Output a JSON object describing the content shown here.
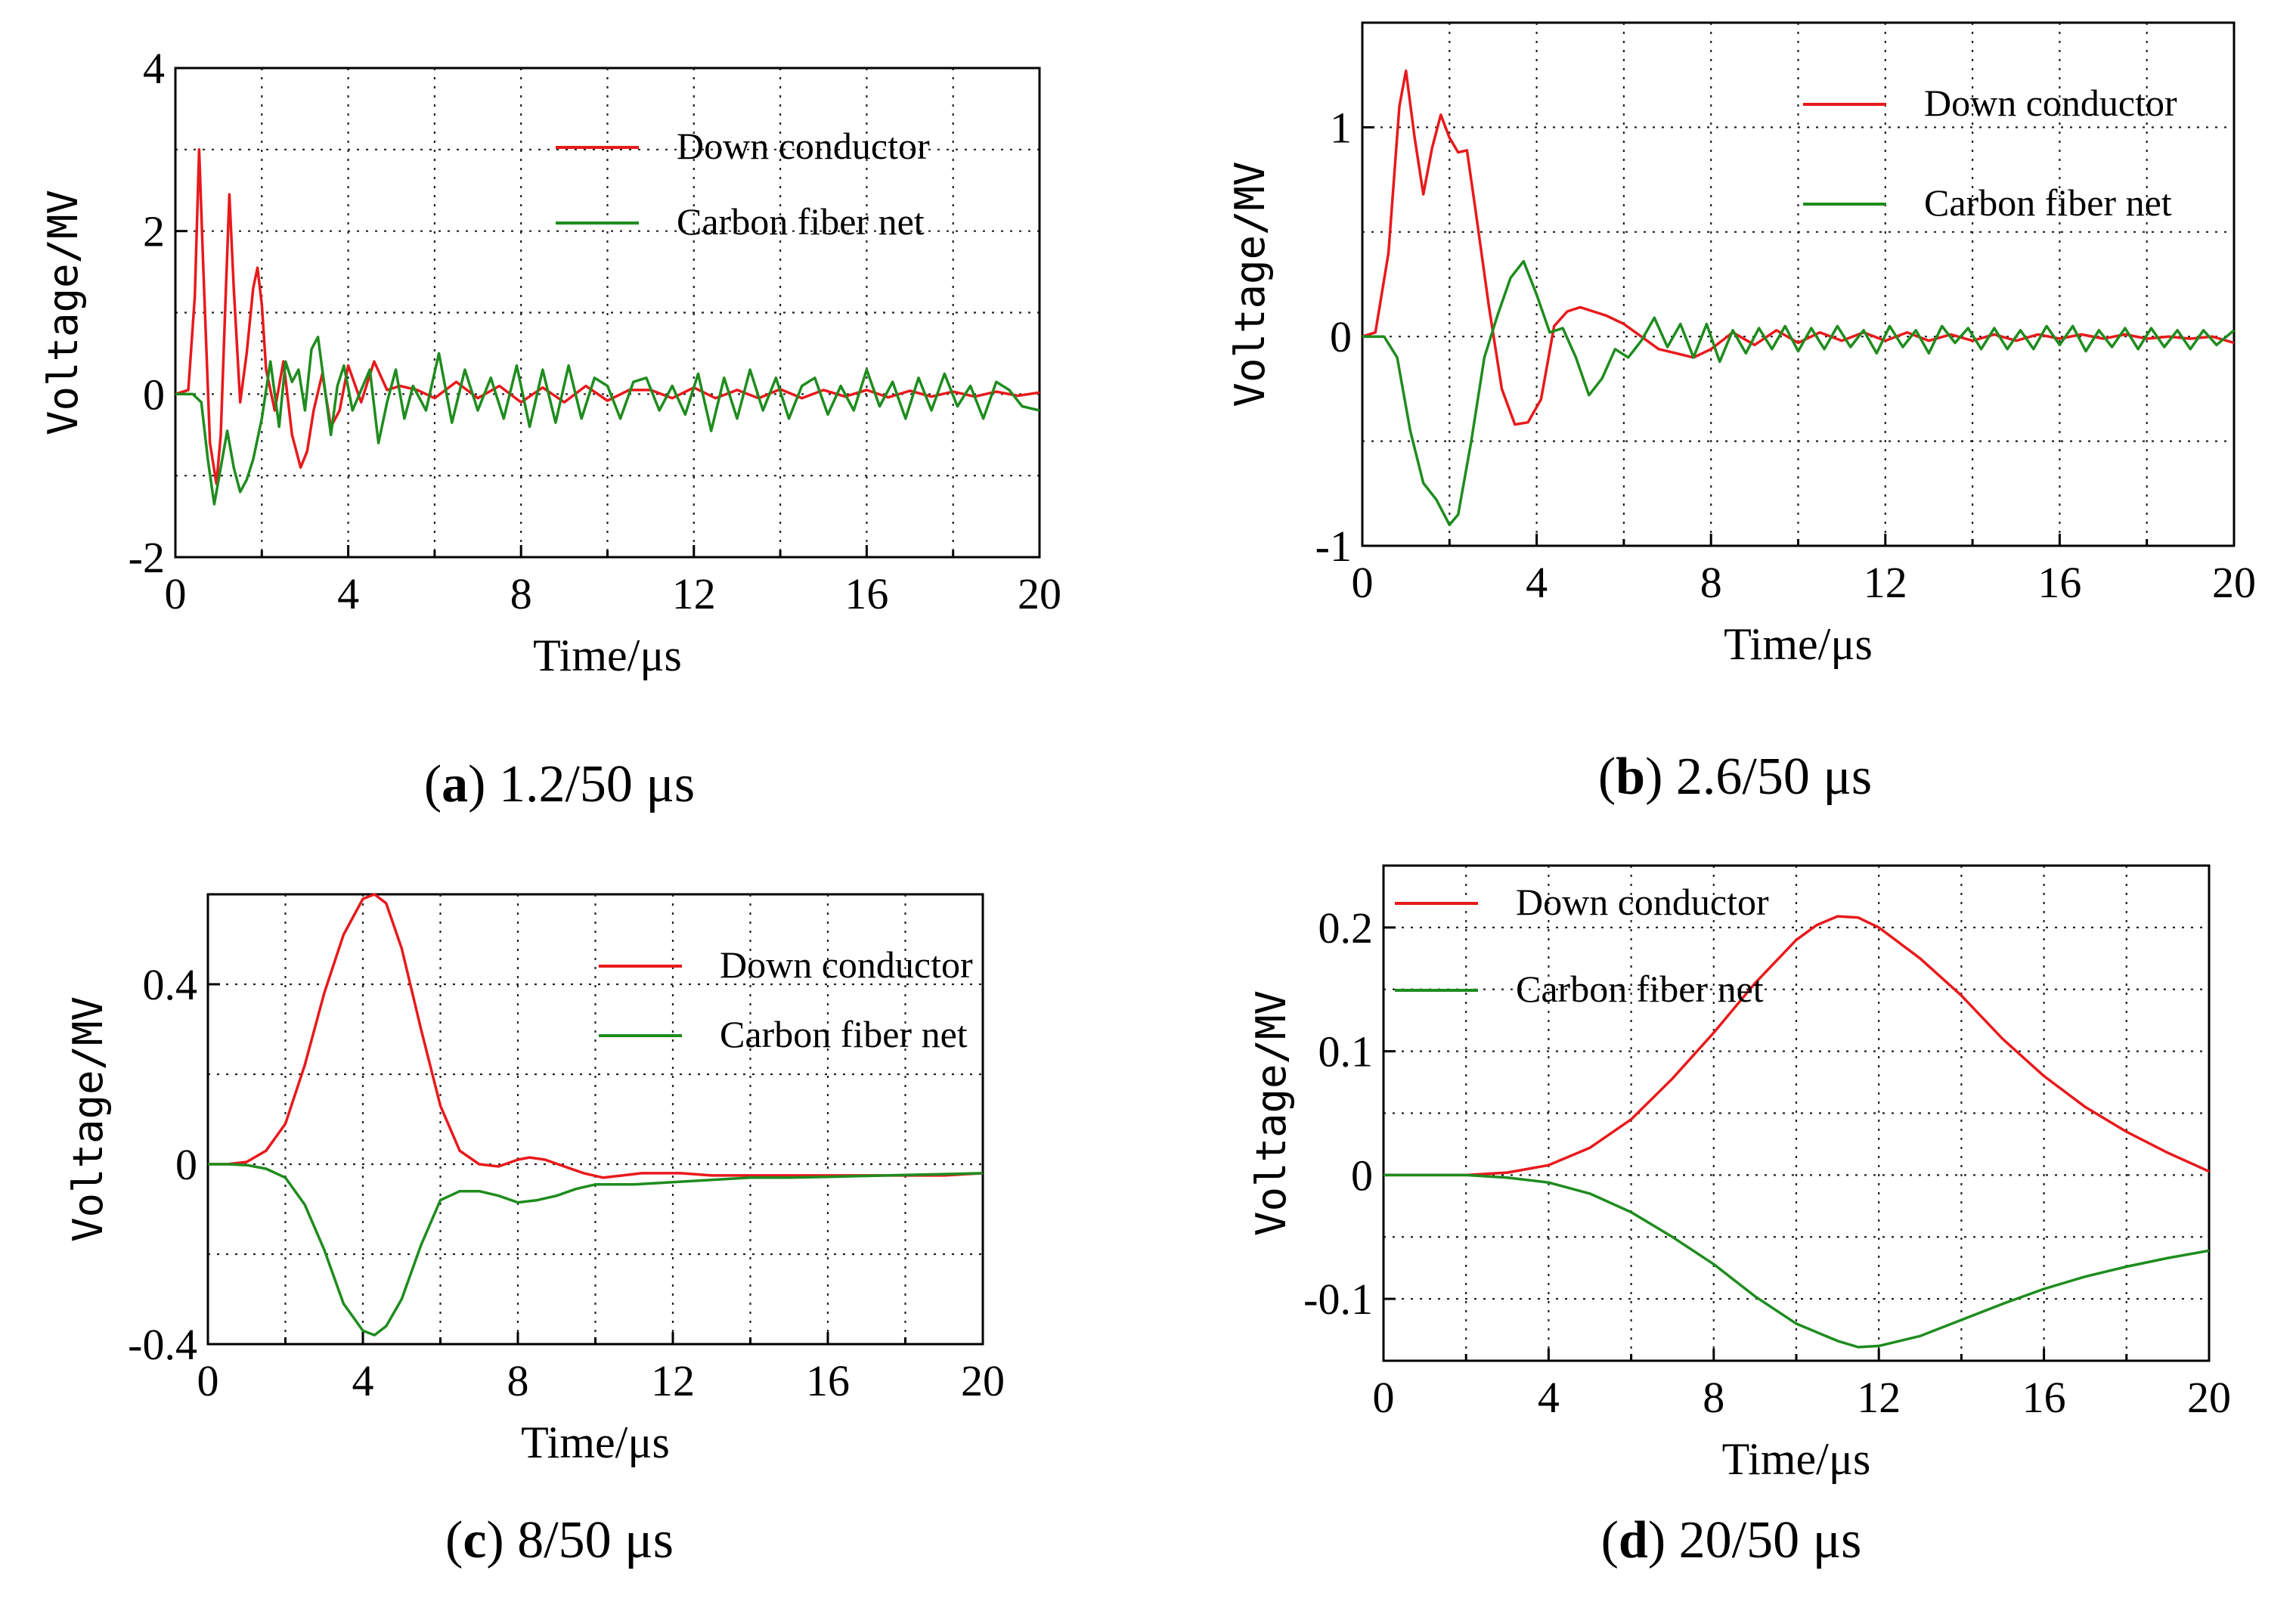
{
  "chart_data": [
    {
      "id": "a",
      "type": "line",
      "caption_letter": "a",
      "caption_text": " 1.2/50 μs",
      "xlabel": "Time/μs",
      "ylabel": "Voltage/MV",
      "xlim": [
        0,
        20
      ],
      "ylim": [
        -2,
        4
      ],
      "xticks": [
        0,
        4,
        8,
        12,
        16,
        20
      ],
      "xtick_labels": [
        "0",
        "4",
        "8",
        "12",
        "16",
        "20"
      ],
      "yticks": [
        -2,
        0,
        2,
        4
      ],
      "ytick_labels": [
        "-2",
        "0",
        "2",
        "4"
      ],
      "legend_position": "top-right",
      "series": [
        {
          "name": "Down conductor",
          "color": "#e8191c",
          "x": [
            0,
            0.3,
            0.45,
            0.55,
            0.65,
            0.8,
            0.95,
            1.05,
            1.15,
            1.25,
            1.35,
            1.5,
            1.65,
            1.8,
            1.9,
            2.0,
            2.1,
            2.3,
            2.5,
            2.7,
            2.9,
            3.05,
            3.2,
            3.4,
            3.6,
            3.8,
            4.0,
            4.3,
            4.6,
            4.9,
            5.2,
            5.6,
            6.0,
            6.5,
            7.0,
            7.5,
            8.0,
            8.5,
            9.0,
            9.5,
            10.0,
            10.5,
            11.0,
            11.5,
            12.0,
            12.5,
            13.0,
            13.5,
            14.0,
            14.5,
            15.0,
            15.5,
            16.0,
            16.5,
            17.0,
            17.5,
            18.0,
            18.5,
            19.0,
            19.5,
            20.0
          ],
          "y": [
            0,
            0.05,
            1.2,
            3.0,
            1.5,
            -0.6,
            -1.1,
            -0.5,
            1.0,
            2.45,
            1.3,
            -0.1,
            0.5,
            1.3,
            1.55,
            1.1,
            0.3,
            -0.2,
            0.4,
            -0.5,
            -0.9,
            -0.7,
            -0.2,
            0.25,
            -0.4,
            -0.2,
            0.35,
            -0.1,
            0.4,
            0.05,
            0.1,
            0.05,
            -0.05,
            0.15,
            -0.05,
            0.1,
            -0.1,
            0.08,
            -0.1,
            0.1,
            -0.08,
            0.05,
            0.05,
            -0.05,
            0.08,
            -0.05,
            0.05,
            -0.05,
            0.06,
            -0.05,
            0.05,
            -0.03,
            0.05,
            -0.04,
            0.04,
            -0.03,
            0.03,
            -0.03,
            0.03,
            -0.02,
            0.02
          ]
        },
        {
          "name": "Carbon fiber net",
          "color": "#1e8c1e",
          "x": [
            0,
            0.4,
            0.6,
            0.75,
            0.9,
            1.05,
            1.2,
            1.35,
            1.5,
            1.65,
            1.8,
            2.0,
            2.2,
            2.4,
            2.55,
            2.7,
            2.85,
            3.0,
            3.15,
            3.3,
            3.45,
            3.6,
            3.75,
            3.9,
            4.1,
            4.3,
            4.5,
            4.7,
            4.9,
            5.1,
            5.3,
            5.5,
            5.8,
            6.1,
            6.4,
            6.7,
            7.0,
            7.3,
            7.6,
            7.9,
            8.2,
            8.5,
            8.8,
            9.1,
            9.4,
            9.7,
            10.0,
            10.3,
            10.6,
            10.9,
            11.2,
            11.5,
            11.8,
            12.1,
            12.4,
            12.7,
            13.0,
            13.3,
            13.6,
            13.9,
            14.2,
            14.5,
            14.8,
            15.1,
            15.4,
            15.7,
            16.0,
            16.3,
            16.6,
            16.9,
            17.2,
            17.5,
            17.8,
            18.1,
            18.4,
            18.7,
            19.0,
            19.3,
            19.6,
            20.0
          ],
          "y": [
            0,
            0,
            -0.1,
            -0.8,
            -1.35,
            -0.9,
            -0.45,
            -0.9,
            -1.2,
            -1.05,
            -0.8,
            -0.3,
            0.4,
            -0.4,
            0.4,
            0.15,
            0.3,
            -0.2,
            0.55,
            0.7,
            0.1,
            -0.5,
            0.1,
            0.35,
            -0.2,
            0.05,
            0.3,
            -0.6,
            -0.1,
            0.3,
            -0.3,
            0.1,
            -0.2,
            0.5,
            -0.35,
            0.3,
            -0.2,
            0.2,
            -0.3,
            0.35,
            -0.4,
            0.3,
            -0.35,
            0.35,
            -0.3,
            0.2,
            0.1,
            -0.3,
            0.15,
            0.2,
            -0.2,
            0.1,
            -0.25,
            0.25,
            -0.45,
            0.2,
            -0.3,
            0.3,
            -0.2,
            0.2,
            -0.3,
            0.1,
            0.2,
            -0.25,
            0.1,
            -0.2,
            0.3,
            -0.15,
            0.15,
            -0.3,
            0.2,
            -0.2,
            0.25,
            -0.15,
            0.1,
            -0.3,
            0.15,
            0.05,
            -0.15,
            -0.2
          ]
        }
      ]
    },
    {
      "id": "b",
      "type": "line",
      "caption_letter": "b",
      "caption_text": " 2.6/50 μs",
      "xlabel": "Time/μs",
      "ylabel": "Voltage/MV",
      "xlim": [
        0,
        20
      ],
      "ylim": [
        -1,
        1.5
      ],
      "xticks": [
        0,
        4,
        8,
        12,
        16,
        20
      ],
      "xtick_labels": [
        "0",
        "4",
        "8",
        "12",
        "16",
        "20"
      ],
      "yticks": [
        -1,
        0,
        1
      ],
      "ytick_labels": [
        "-1",
        "0",
        "1"
      ],
      "legend_position": "top-right",
      "series": [
        {
          "name": "Down conductor",
          "color": "#e8191c",
          "x": [
            0,
            0.3,
            0.6,
            0.85,
            1.0,
            1.2,
            1.4,
            1.6,
            1.8,
            2.0,
            2.2,
            2.4,
            2.6,
            2.9,
            3.2,
            3.5,
            3.8,
            4.1,
            4.4,
            4.7,
            5.0,
            5.3,
            5.6,
            6.0,
            6.4,
            6.8,
            7.2,
            7.6,
            8.0,
            8.5,
            9.0,
            9.5,
            10.0,
            10.5,
            11.0,
            11.5,
            12.0,
            12.5,
            13.0,
            13.5,
            14.0,
            14.5,
            15.0,
            15.5,
            16.0,
            16.5,
            17.0,
            17.5,
            18.0,
            18.5,
            19.0,
            19.5,
            20.0
          ],
          "y": [
            0,
            0.02,
            0.4,
            1.1,
            1.27,
            0.95,
            0.68,
            0.9,
            1.06,
            0.95,
            0.88,
            0.89,
            0.6,
            0.15,
            -0.25,
            -0.42,
            -0.41,
            -0.3,
            0.05,
            0.12,
            0.14,
            0.12,
            0.1,
            0.06,
            0.0,
            -0.06,
            -0.08,
            -0.1,
            -0.06,
            0.02,
            -0.04,
            0.03,
            -0.03,
            0.02,
            -0.02,
            0.02,
            -0.02,
            0.02,
            -0.02,
            0.01,
            -0.02,
            0.01,
            -0.02,
            0.01,
            -0.01,
            0.01,
            -0.01,
            0.01,
            -0.01,
            0.0,
            -0.01,
            0.0,
            -0.03
          ]
        },
        {
          "name": "Carbon fiber net",
          "color": "#1e8c1e",
          "x": [
            0,
            0.5,
            0.8,
            1.1,
            1.4,
            1.7,
            2.0,
            2.2,
            2.5,
            2.8,
            3.1,
            3.4,
            3.7,
            4.0,
            4.3,
            4.6,
            4.9,
            5.2,
            5.5,
            5.8,
            6.1,
            6.4,
            6.7,
            7.0,
            7.3,
            7.6,
            7.9,
            8.2,
            8.5,
            8.8,
            9.1,
            9.4,
            9.7,
            10.0,
            10.3,
            10.6,
            10.9,
            11.2,
            11.5,
            11.8,
            12.1,
            12.4,
            12.7,
            13.0,
            13.3,
            13.6,
            13.9,
            14.2,
            14.5,
            14.8,
            15.1,
            15.4,
            15.7,
            16.0,
            16.3,
            16.6,
            16.9,
            17.2,
            17.5,
            17.8,
            18.1,
            18.4,
            18.7,
            19.0,
            19.3,
            19.6,
            20.0
          ],
          "y": [
            0,
            0,
            -0.1,
            -0.45,
            -0.7,
            -0.78,
            -0.9,
            -0.85,
            -0.5,
            -0.1,
            0.1,
            0.28,
            0.36,
            0.2,
            0.02,
            0.04,
            -0.1,
            -0.28,
            -0.2,
            -0.06,
            -0.1,
            -0.02,
            0.09,
            -0.05,
            0.06,
            -0.1,
            0.06,
            -0.12,
            0.03,
            -0.08,
            0.04,
            -0.06,
            0.05,
            -0.07,
            0.04,
            -0.06,
            0.05,
            -0.05,
            0.03,
            -0.08,
            0.05,
            -0.05,
            0.03,
            -0.08,
            0.05,
            -0.03,
            0.04,
            -0.06,
            0.04,
            -0.06,
            0.03,
            -0.06,
            0.05,
            -0.04,
            0.05,
            -0.07,
            0.03,
            -0.05,
            0.04,
            -0.06,
            0.04,
            -0.05,
            0.03,
            -0.06,
            0.03,
            -0.04,
            0.03
          ]
        }
      ]
    },
    {
      "id": "c",
      "type": "line",
      "caption_letter": "c",
      "caption_text": " 8/50 μs",
      "xlabel": "Time/μs",
      "ylabel": "Voltage/MV",
      "xlim": [
        0,
        20
      ],
      "ylim": [
        -0.4,
        0.6
      ],
      "xticks": [
        0,
        4,
        8,
        12,
        16,
        20
      ],
      "xtick_labels": [
        "0",
        "4",
        "8",
        "12",
        "16",
        "20"
      ],
      "yticks": [
        -0.4,
        0,
        0.4
      ],
      "ytick_labels": [
        "-0.4",
        "0",
        "0.4"
      ],
      "legend_position": "top-right",
      "series": [
        {
          "name": "Down conductor",
          "color": "#e8191c",
          "x": [
            0,
            0.5,
            1.0,
            1.5,
            2.0,
            2.5,
            3.0,
            3.5,
            4.0,
            4.3,
            4.6,
            5.0,
            5.5,
            6.0,
            6.5,
            7.0,
            7.5,
            8.0,
            8.3,
            8.7,
            9.2,
            9.7,
            10.2,
            10.7,
            11.2,
            11.7,
            12.2,
            13.0,
            14.0,
            15.0,
            16.0,
            17.0,
            18.0,
            19.0,
            20.0
          ],
          "y": [
            0,
            0,
            0.005,
            0.03,
            0.09,
            0.22,
            0.38,
            0.51,
            0.59,
            0.6,
            0.58,
            0.48,
            0.3,
            0.13,
            0.03,
            0.0,
            -0.005,
            0.01,
            0.015,
            0.01,
            -0.005,
            -0.02,
            -0.03,
            -0.025,
            -0.02,
            -0.02,
            -0.02,
            -0.025,
            -0.025,
            -0.025,
            -0.025,
            -0.025,
            -0.025,
            -0.025,
            -0.02
          ]
        },
        {
          "name": "Carbon fiber net",
          "color": "#1e8c1e",
          "x": [
            0,
            0.5,
            1.0,
            1.5,
            2.0,
            2.5,
            3.0,
            3.5,
            4.0,
            4.3,
            4.6,
            5.0,
            5.5,
            6.0,
            6.5,
            7.0,
            7.5,
            8.0,
            8.5,
            9.0,
            9.5,
            10.0,
            10.5,
            11.0,
            12.0,
            13.0,
            14.0,
            15.0,
            16.0,
            17.0,
            18.0,
            19.0,
            20.0
          ],
          "y": [
            0,
            0,
            -0.002,
            -0.01,
            -0.03,
            -0.09,
            -0.19,
            -0.31,
            -0.37,
            -0.38,
            -0.36,
            -0.3,
            -0.18,
            -0.08,
            -0.06,
            -0.06,
            -0.07,
            -0.085,
            -0.08,
            -0.07,
            -0.055,
            -0.045,
            -0.045,
            -0.045,
            -0.04,
            -0.035,
            -0.03,
            -0.03,
            -0.028,
            -0.026,
            -0.024,
            -0.022,
            -0.02
          ]
        }
      ]
    },
    {
      "id": "d",
      "type": "line",
      "caption_letter": "d",
      "caption_text": " 20/50 μs",
      "xlabel": "Time/μs",
      "ylabel": "Voltage/MV",
      "xlim": [
        0,
        20
      ],
      "ylim": [
        -0.15,
        0.25
      ],
      "xticks": [
        0,
        4,
        8,
        12,
        16,
        20
      ],
      "xtick_labels": [
        "0",
        "4",
        "8",
        "12",
        "16",
        "20"
      ],
      "yticks": [
        -0.1,
        0,
        0.1,
        0.2
      ],
      "ytick_labels": [
        "-0.1",
        "0",
        "0.1",
        "0.2"
      ],
      "legend_position": "top-left",
      "series": [
        {
          "name": "Down conductor",
          "color": "#e8191c",
          "x": [
            0,
            1,
            2,
            3,
            4,
            5,
            6,
            7,
            8,
            9,
            10,
            10.5,
            11,
            11.5,
            12,
            13,
            14,
            15,
            16,
            17,
            18,
            19,
            20
          ],
          "y": [
            0,
            0,
            0.0,
            0.002,
            0.008,
            0.022,
            0.045,
            0.078,
            0.115,
            0.155,
            0.19,
            0.202,
            0.209,
            0.208,
            0.2,
            0.175,
            0.145,
            0.11,
            0.08,
            0.055,
            0.035,
            0.018,
            0.003
          ]
        },
        {
          "name": "Carbon fiber net",
          "color": "#1e8c1e",
          "x": [
            0,
            1,
            2,
            3,
            4,
            5,
            6,
            7,
            8,
            9,
            10,
            11,
            11.5,
            12,
            13,
            14,
            15,
            16,
            17,
            18,
            19,
            20
          ],
          "y": [
            0,
            0,
            0,
            -0.002,
            -0.006,
            -0.015,
            -0.03,
            -0.05,
            -0.072,
            -0.098,
            -0.12,
            -0.134,
            -0.139,
            -0.138,
            -0.13,
            -0.117,
            -0.104,
            -0.092,
            -0.082,
            -0.074,
            -0.067,
            -0.061
          ]
        }
      ]
    }
  ]
}
